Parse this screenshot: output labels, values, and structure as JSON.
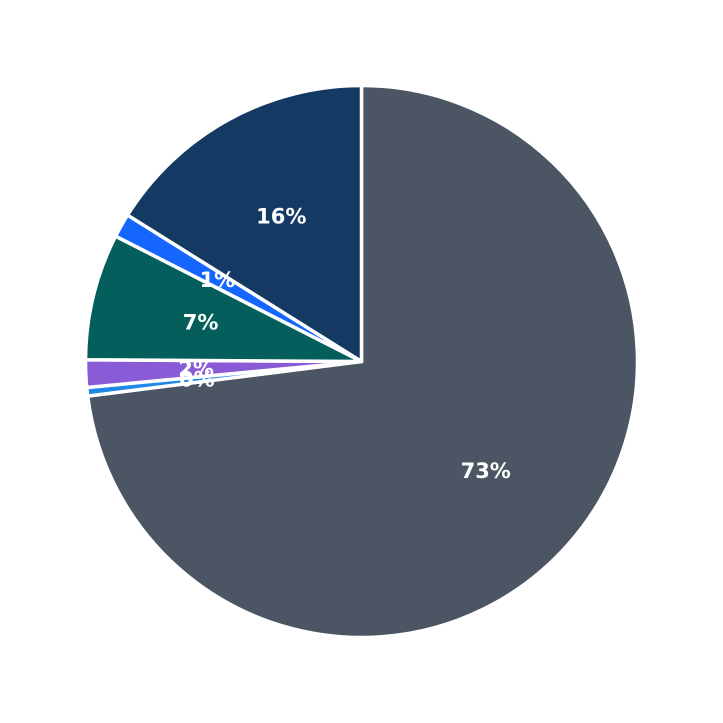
{
  "chart_data": {
    "type": "pie",
    "start_angle_deg": 90,
    "direction": "clockwise",
    "slices": [
      {
        "value": 73.0,
        "label": "73%",
        "color": "#4b5563"
      },
      {
        "value": 0.5,
        "label": "0%",
        "color": "#1e88e5"
      },
      {
        "value": 1.6,
        "label": "2%",
        "color": "#8a5bd6"
      },
      {
        "value": 7.4,
        "label": "7%",
        "color": "#035e5c"
      },
      {
        "value": 1.4,
        "label": "1%",
        "color": "#1565ff"
      },
      {
        "value": 16.1,
        "label": "16%",
        "color": "#143963"
      }
    ],
    "slice_separator_color": "#ffffff",
    "legend": "none"
  }
}
